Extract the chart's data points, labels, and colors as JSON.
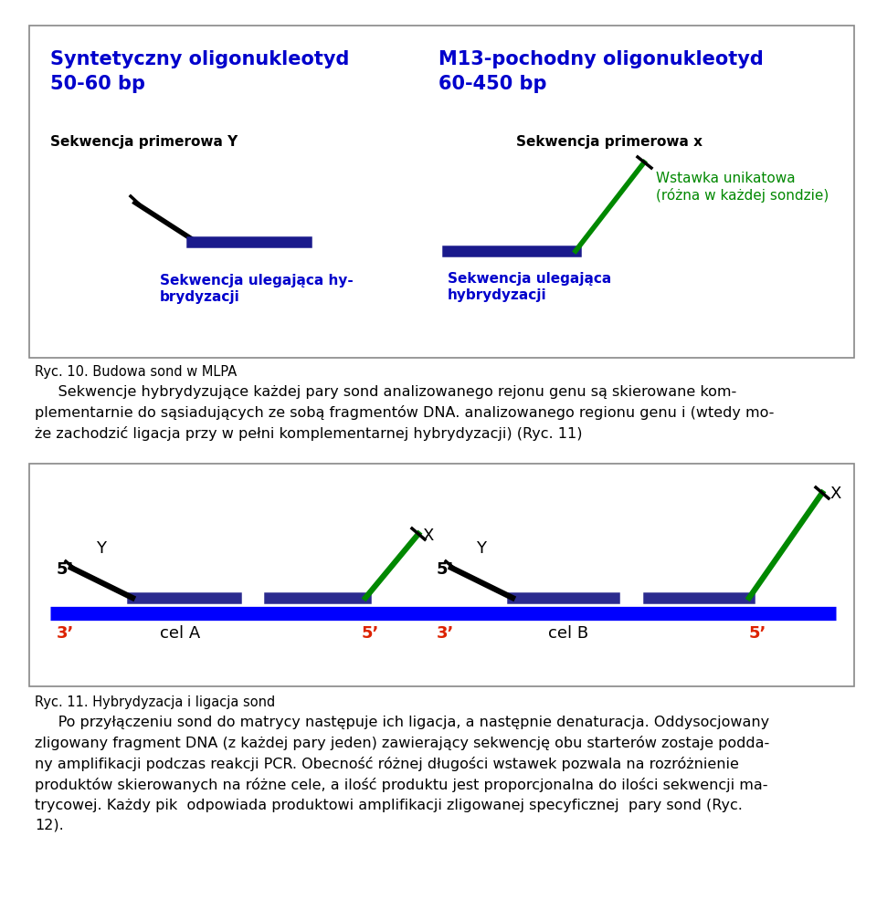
{
  "fig_width": 9.6,
  "fig_height": 10.08,
  "bg_color": "#ffffff",
  "top_box": {
    "left_title1": "Syntetyczny oligonukleotyd",
    "left_title2": "50-60 bp",
    "right_title1": "M13-pochodny oligonukleotyd",
    "right_title2": "60-450 bp",
    "title_color": "#0000cc",
    "title_fontsize": 15,
    "label_Y": "Sekwencja primerowa Y",
    "label_x": "Sekwencja primerowa x",
    "label_hyb_left1": "Sekwencja ulegająca hy-",
    "label_hyb_left2": "brydyzacji",
    "label_hyb_right1": "Sekwencja ulegająca",
    "label_hyb_right2": "hybrydyzacji",
    "label_wstawka1": "Wstawka unikatowa",
    "label_wstawka2": "(różna w każdej sondzie)",
    "label_fontsize": 11
  },
  "caption_top": "Ryc. 10. Budowa sond w MLPA",
  "caption_bottom": "Ryc. 11. Hybrydyzacja i ligacja sond",
  "paragraph1": "     Sekwencje hybrydyzujące każdej pary sond analizowanego rejonu genu są skierowane kom-\nplementarnie do sąsiadujących ze sobą fragmentów DNA. analizowanego regionu genu i (wtedy mo-\nże zachodzić ligacja przy w pełni komplementarnej hybrydyzacji) (Ryc. 11)",
  "paragraph2": "     Po przyłączeniu sond do matrycy następuje ich ligacja, a następnie denaturacja. Oddysocjowany\nzligowany fragment DNA (z każdej pary jeden) zawierający sekwencję obu starterów zostaje podda-\nny amplifikacji podczas reakcji PCR. Obecność różnej długości wstawek pozwala na rozróżnienie\nproduktów skierowanych na różne cele, a ilość produktu jest proporcjonalna do ilości sekwencji ma-\ntrycowej. Każdy pik  odpowiada produktowi amplifikacji zligowanej specyficznej  pary sond (Ryc.\n12)."
}
